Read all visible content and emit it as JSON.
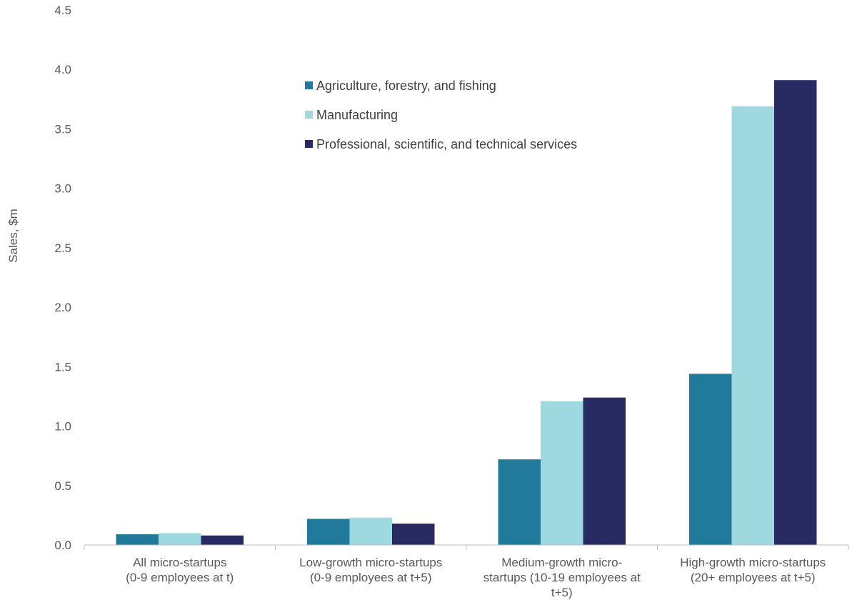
{
  "chart_data": {
    "type": "bar",
    "ylabel": "Sales, $m",
    "xlabel": "",
    "ylim": [
      0,
      4.5
    ],
    "yticks": [
      "0.0",
      "0.5",
      "1.0",
      "1.5",
      "2.0",
      "2.5",
      "3.0",
      "3.5",
      "4.0",
      "4.5"
    ],
    "grid": false,
    "legend_position": "top-center",
    "categories": [
      [
        "All micro-startups",
        "(0-9 employees at t)"
      ],
      [
        "Low-growth micro-startups",
        "(0-9 employees at t+5)"
      ],
      [
        "Medium-growth micro-",
        "startups (10-19 employees at",
        "t+5)"
      ],
      [
        "High-growth micro-startups",
        "(20+ employees at t+5)"
      ]
    ],
    "series": [
      {
        "name": "Agriculture, forestry, and fishing",
        "color": "#21799b",
        "values": [
          0.09,
          0.22,
          0.72,
          1.44
        ]
      },
      {
        "name": "Manufacturing",
        "color": "#9fd9e0",
        "values": [
          0.1,
          0.23,
          1.21,
          3.69
        ]
      },
      {
        "name": "Professional, scientific, and technical services",
        "color": "#282a62",
        "values": [
          0.08,
          0.18,
          1.24,
          3.91
        ]
      }
    ]
  }
}
